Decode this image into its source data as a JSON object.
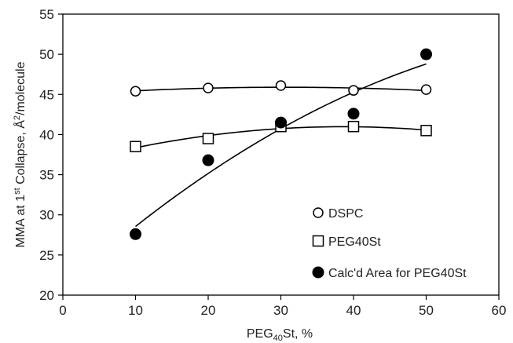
{
  "chart_data": {
    "type": "scatter",
    "xlabel": "PEG40St, %",
    "ylabel": "MMA at 1st Collapse, Å2/molecule",
    "xlim": [
      0,
      60
    ],
    "ylim": [
      20,
      55
    ],
    "xticks": [
      0,
      10,
      20,
      30,
      40,
      50,
      60
    ],
    "yticks": [
      20,
      25,
      30,
      35,
      40,
      45,
      50,
      55
    ],
    "grid": false,
    "legend_position": "bottom-right",
    "series": [
      {
        "name": "DSPC",
        "marker": "open-circle",
        "x": [
          10,
          20,
          30,
          40,
          50
        ],
        "y": [
          45.4,
          45.8,
          46.1,
          45.5,
          45.6
        ],
        "trend": "polynomial"
      },
      {
        "name": "PEG40St",
        "marker": "open-square",
        "x": [
          10,
          20,
          30,
          40,
          50
        ],
        "y": [
          38.5,
          39.5,
          41.0,
          41.0,
          40.5
        ],
        "trend": "polynomial"
      },
      {
        "name": "Calc'd Area for PEG40St",
        "marker": "filled-circle",
        "x": [
          10,
          20,
          30,
          40,
          50
        ],
        "y": [
          27.6,
          36.8,
          41.5,
          42.6,
          50.0
        ],
        "trend": "polynomial"
      }
    ]
  }
}
